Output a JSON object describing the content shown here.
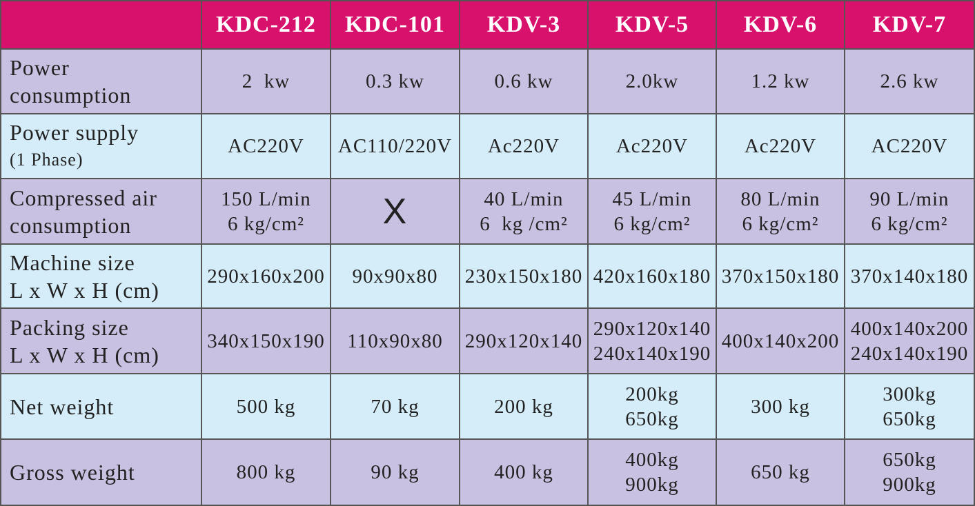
{
  "table": {
    "columns": [
      "KDC-212",
      "KDC-101",
      "KDV-3",
      "KDV-5",
      "KDV-6",
      "KDV-7"
    ],
    "rows": [
      {
        "label": [
          "Power",
          "consumption"
        ],
        "cells": [
          [
            "2  kw"
          ],
          [
            "0.3 kw"
          ],
          [
            "0.6 kw"
          ],
          [
            "2.0kw"
          ],
          [
            "1.2 kw"
          ],
          [
            "2.6 kw"
          ]
        ]
      },
      {
        "label": [
          "Power supply",
          "(1 Phase)"
        ],
        "cells": [
          [
            "AC220V"
          ],
          [
            "AC110/220V"
          ],
          [
            "Ac220V"
          ],
          [
            "Ac220V"
          ],
          [
            "Ac220V"
          ],
          [
            "AC220V"
          ]
        ]
      },
      {
        "label": [
          "Compressed air",
          "consumption"
        ],
        "cells": [
          [
            "150 L/min",
            "6 kg/cm²"
          ],
          [
            "X"
          ],
          [
            "40 L/min",
            "6  kg /cm²"
          ],
          [
            "45 L/min",
            "6 kg/cm²"
          ],
          [
            "80 L/min",
            "6 kg/cm²"
          ],
          [
            "90 L/min",
            "6 kg/cm²"
          ]
        ]
      },
      {
        "label": [
          "Machine size",
          "L x W x H (cm)"
        ],
        "cells": [
          [
            "290x160x200"
          ],
          [
            "90x90x80"
          ],
          [
            "230x150x180"
          ],
          [
            "420x160x180"
          ],
          [
            "370x150x180"
          ],
          [
            "370x140x180"
          ]
        ]
      },
      {
        "label": [
          "Packing size",
          "L x W x H (cm)"
        ],
        "cells": [
          [
            "340x150x190"
          ],
          [
            "110x90x80"
          ],
          [
            "290x120x140"
          ],
          [
            "290x120x140",
            "240x140x190"
          ],
          [
            "400x140x200"
          ],
          [
            "400x140x200",
            "240x140x190"
          ]
        ]
      },
      {
        "label": [
          "Net weight"
        ],
        "cells": [
          [
            "500 kg"
          ],
          [
            "70 kg"
          ],
          [
            "200 kg"
          ],
          [
            "200kg",
            "650kg"
          ],
          [
            "300 kg"
          ],
          [
            "300kg",
            "650kg"
          ]
        ]
      },
      {
        "label": [
          "Gross weight"
        ],
        "cells": [
          [
            "800 kg"
          ],
          [
            "90 kg"
          ],
          [
            "400 kg"
          ],
          [
            "400kg",
            "900kg"
          ],
          [
            "650 kg"
          ],
          [
            "650kg",
            "900kg"
          ]
        ]
      }
    ]
  }
}
